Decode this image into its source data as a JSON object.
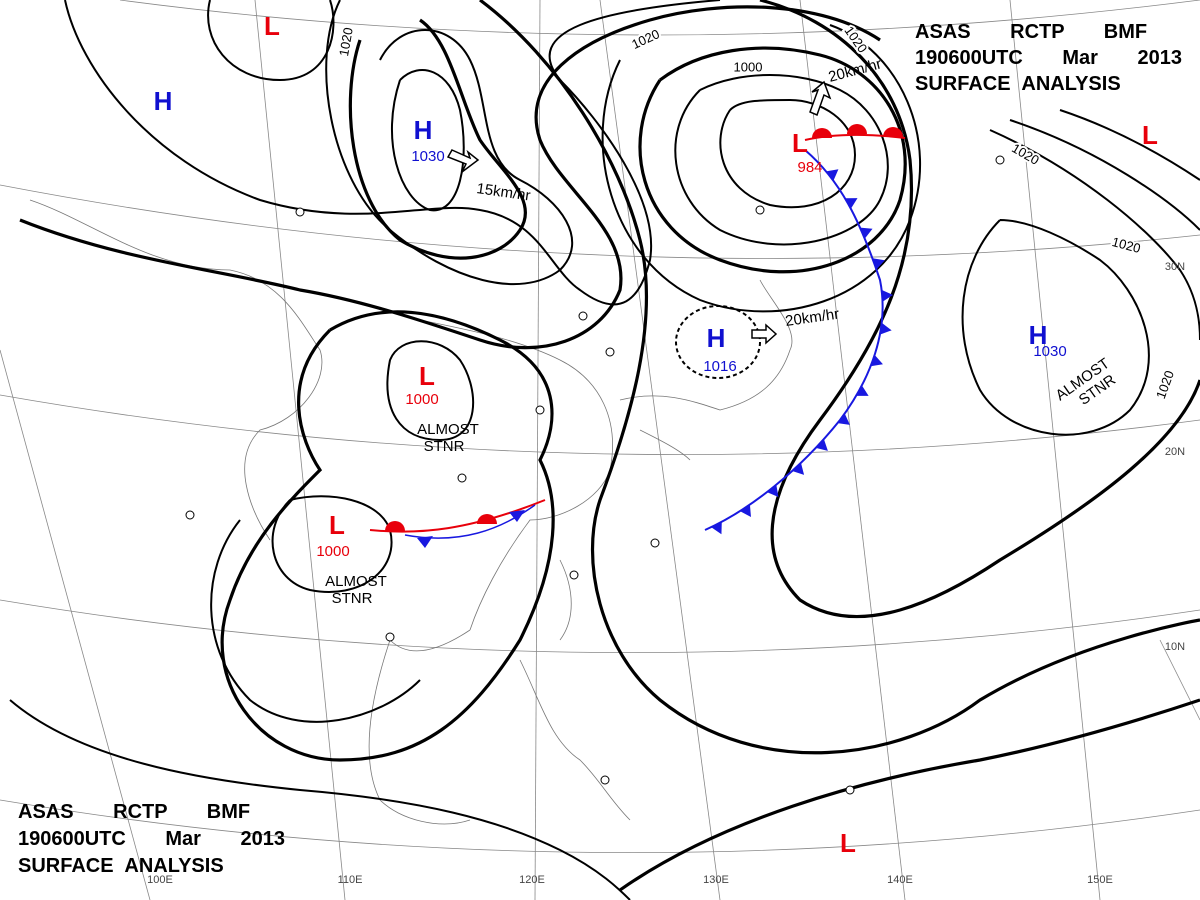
{
  "header_top": {
    "line1": "ASAS RCTP BMF",
    "line2": "190600UTC Mar 2013",
    "line3": "SURFACE ANALYSIS"
  },
  "header_bottom": {
    "line1": "ASAS RCTP BMF",
    "line2": "190600UTC Mar 2013",
    "line3": "SURFACE ANALYSIS"
  },
  "centers": [
    {
      "symbol": "L"
    },
    {
      "symbol": "H"
    },
    {
      "symbol": "H",
      "pressure": 1030
    },
    {
      "symbol": "L",
      "pressure": 984
    },
    {
      "symbol": "L"
    },
    {
      "symbol": "H",
      "pressure": 1016
    },
    {
      "symbol": "H",
      "pressure": 1030,
      "note": [
        "ALMOST",
        "STNR"
      ]
    },
    {
      "symbol": "L",
      "pressure": 1000,
      "note": [
        "ALMOST",
        "STNR"
      ]
    },
    {
      "symbol": "L",
      "pressure": 1000,
      "note": [
        "ALMOST",
        "STNR"
      ]
    },
    {
      "symbol": "L"
    }
  ],
  "isobar_labels": [
    1020,
    1020,
    1020,
    1000,
    1020,
    1020,
    1020
  ],
  "motions": [
    "20km/hr",
    "15km/hr",
    "20km/hr"
  ],
  "latitudes": [
    "30N",
    "20N",
    "10N"
  ],
  "longitudes": [
    "100E",
    "110E",
    "120E",
    "130E",
    "140E",
    "150E"
  ]
}
